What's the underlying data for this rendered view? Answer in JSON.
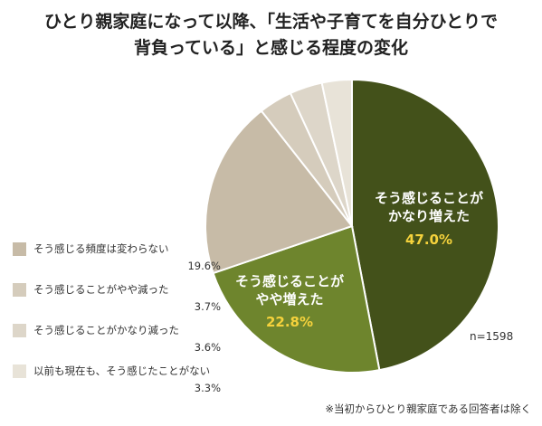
{
  "title": {
    "line1": "ひとり親家庭になって以降、「生活や子育てを自分ひとりで",
    "line2": "背負っている」と感じる程度の変化"
  },
  "chart_data": {
    "type": "pie",
    "title": "ひとり親家庭になって以降、「生活や子育てを自分ひとりで背負っている」と感じる程度の変化",
    "slices": [
      {
        "label": "そう感じることがかなり増えた",
        "inner_label": [
          "そう感じることが",
          "かなり増えた"
        ],
        "value": 47.0,
        "display": "47.0%",
        "color": "#43511a"
      },
      {
        "label": "そう感じることがやや増えた",
        "inner_label": [
          "そう感じることが",
          "やや増えた"
        ],
        "value": 22.8,
        "display": "22.8%",
        "color": "#6e852d"
      },
      {
        "label": "そう感じる頻度は変わらない",
        "value": 19.6,
        "display": "19.6%",
        "color": "#c7bba7"
      },
      {
        "label": "そう感じることがやや減った",
        "value": 3.7,
        "display": "3.7%",
        "color": "#d5ccbc"
      },
      {
        "label": "そう感じることがかなり減った",
        "value": 3.6,
        "display": "3.6%",
        "color": "#ddd6c9"
      },
      {
        "label": "以前も現在も、そう感じたことがない",
        "value": 3.3,
        "display": "3.3%",
        "color": "#e8e3d8"
      }
    ],
    "inner_text_color": "#ffffff",
    "inner_value_color": "#f5d23c",
    "legend_placement": "left"
  },
  "legend": [
    {
      "label": "そう感じる頻度は変わらない",
      "value": "19.6%",
      "color": "#c7bba7"
    },
    {
      "label": "そう感じることがやや減った",
      "value": "3.7%",
      "color": "#d5ccbc"
    },
    {
      "label": "そう感じることがかなり減った",
      "value": "3.6%",
      "color": "#ddd6c9"
    },
    {
      "label": "以前も現在も、そう感じたことがない",
      "value": "3.3%",
      "color": "#e8e3d8"
    }
  ],
  "sample_size": "n=1598",
  "footnote": "※当初からひとり親家庭である回答者は除く"
}
